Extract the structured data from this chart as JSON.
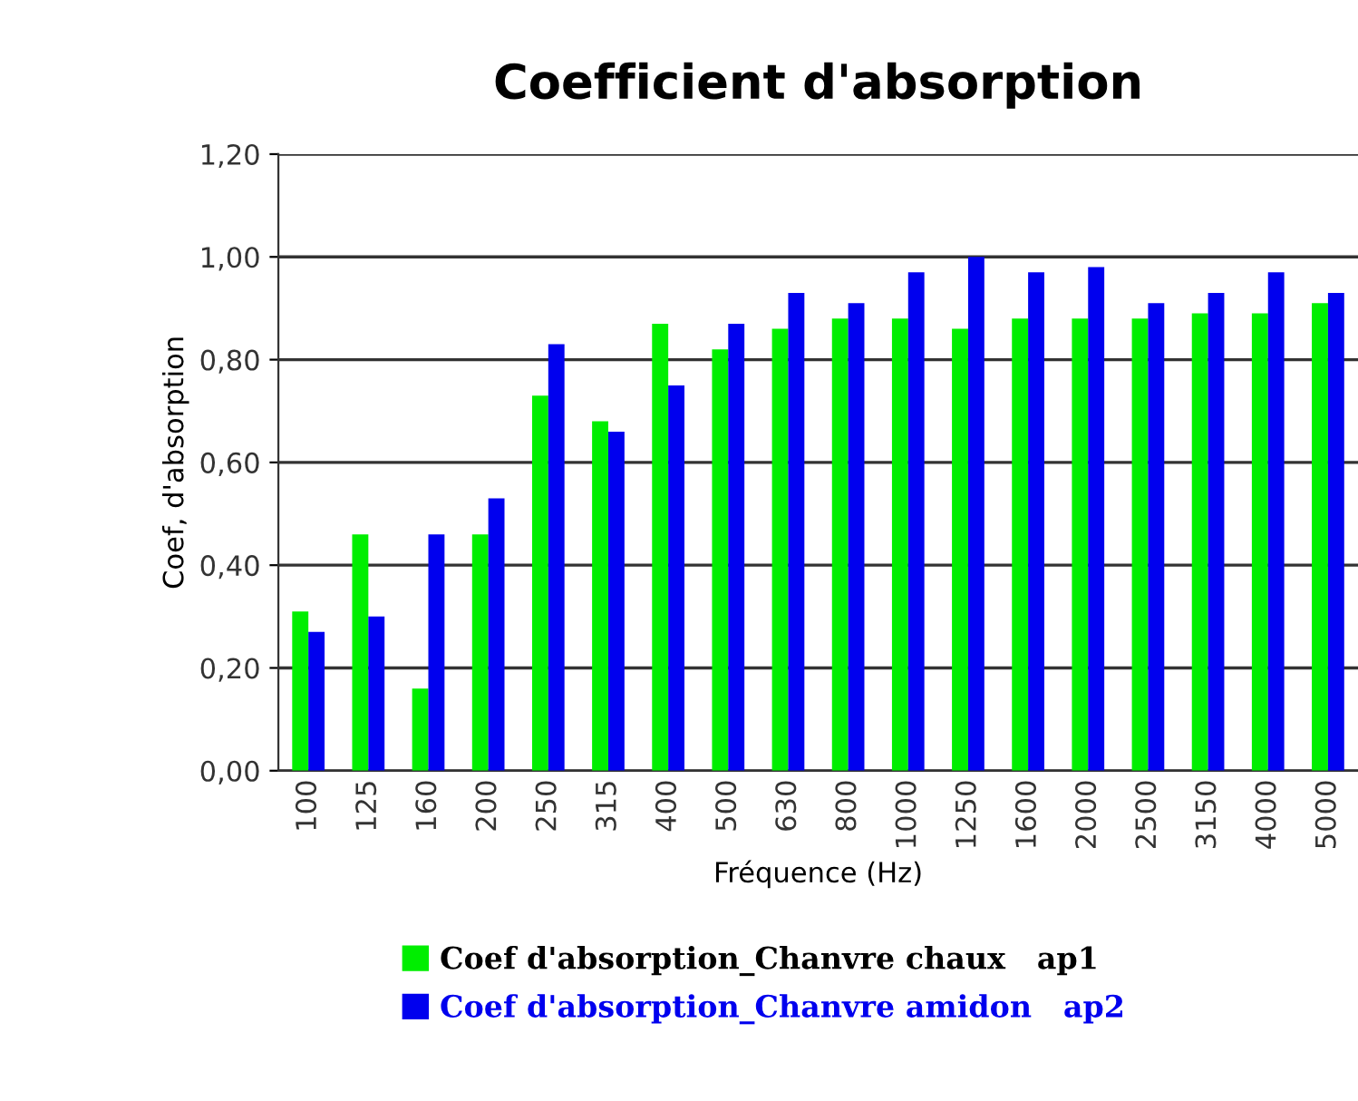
{
  "chart_data": {
    "type": "bar",
    "title": "Coefficient d'absorption",
    "xlabel": "Fréquence (Hz)",
    "ylabel": "Coef, d'absorption",
    "categories": [
      "100",
      "125",
      "160",
      "200",
      "250",
      "315",
      "400",
      "500",
      "630",
      "800",
      "1000",
      "1250",
      "1600",
      "2000",
      "2500",
      "3150",
      "4000",
      "5000"
    ],
    "series": [
      {
        "name": "Coef d'absorption_Chanvre chaux   ap1",
        "color": "#00ee00",
        "values": [
          0.31,
          0.46,
          0.16,
          0.46,
          0.73,
          0.68,
          0.87,
          0.82,
          0.86,
          0.88,
          0.88,
          0.86,
          0.88,
          0.88,
          0.88,
          0.89,
          0.89,
          0.91
        ]
      },
      {
        "name": "Coef d'absorption_Chanvre amidon   ap2",
        "color": "#0000ee",
        "values": [
          0.27,
          0.3,
          0.46,
          0.53,
          0.83,
          0.66,
          0.75,
          0.87,
          0.93,
          0.91,
          0.97,
          1.0,
          0.97,
          0.98,
          0.91,
          0.93,
          0.97,
          0.93
        ]
      }
    ],
    "ylim": [
      0,
      1.2
    ],
    "yticks": [
      {
        "value": 0,
        "label": "0,00"
      },
      {
        "value": 0.2,
        "label": "0,20"
      },
      {
        "value": 0.4,
        "label": "0,40"
      },
      {
        "value": 0.6,
        "label": "0,60"
      },
      {
        "value": 0.8,
        "label": "0,80"
      },
      {
        "value": 1.0,
        "label": "1,00"
      },
      {
        "value": 1.2,
        "label": "1,20"
      }
    ],
    "grid": "y",
    "legend": "bottom"
  }
}
